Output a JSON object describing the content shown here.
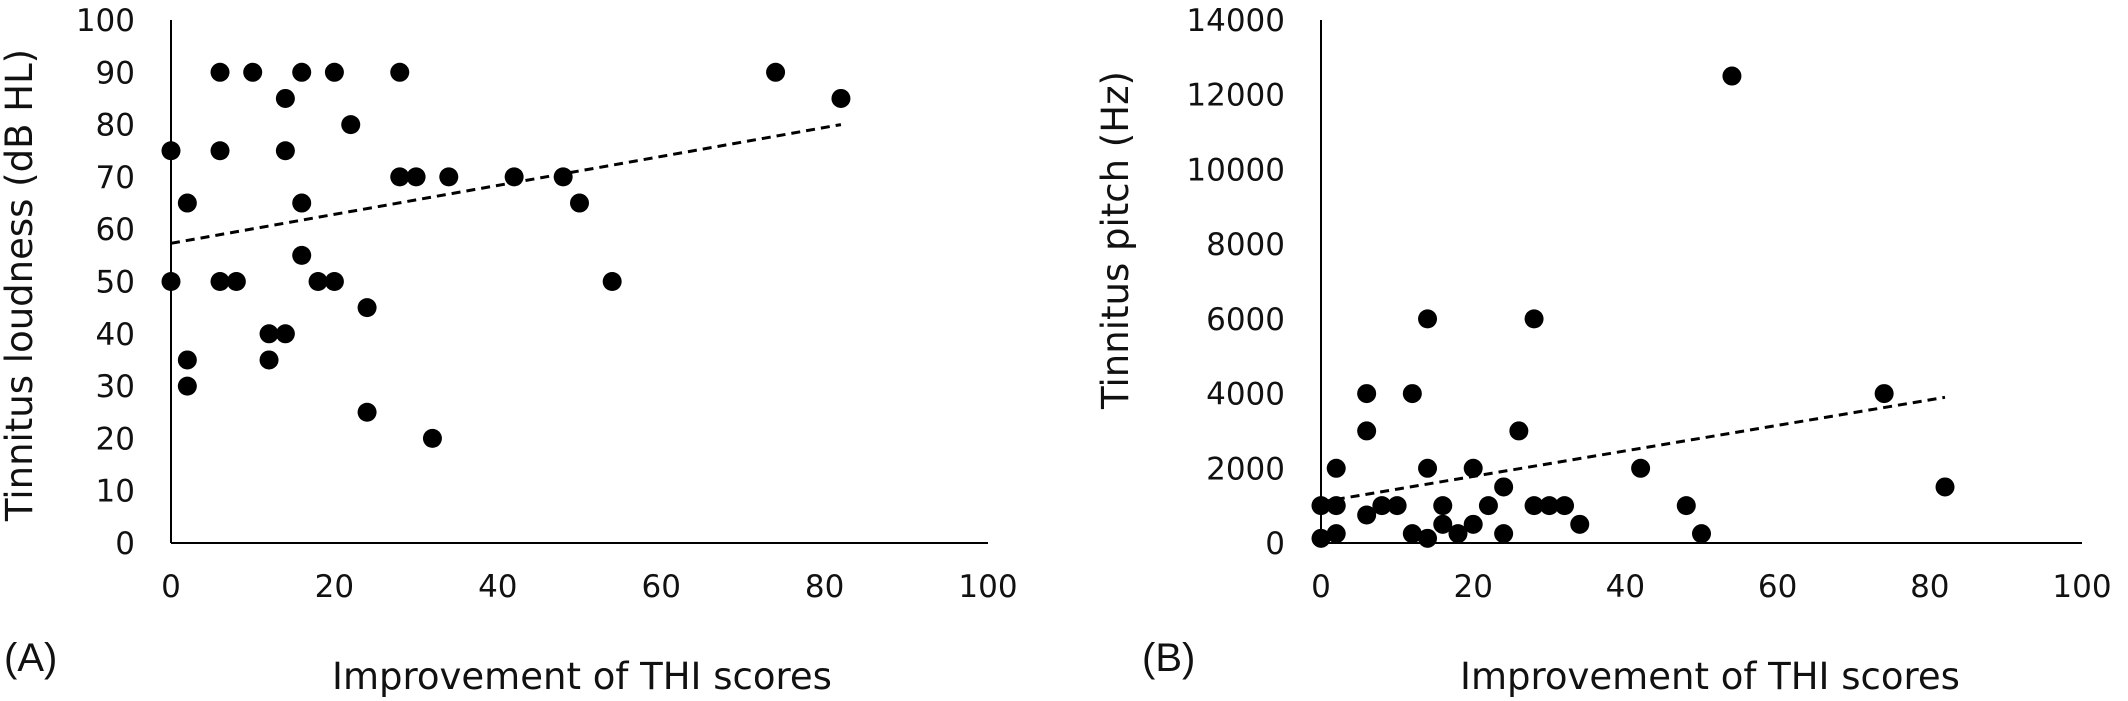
{
  "chart_data": [
    {
      "type": "scatter",
      "panel_label": "(A)",
      "xlabel": "Improvement of THI scores",
      "ylabel": "Tinnitus loudness (dB HL)",
      "xlim": [
        0,
        100
      ],
      "ylim": [
        0,
        100
      ],
      "xticks": [
        0,
        20,
        40,
        60,
        80,
        100
      ],
      "yticks": [
        0,
        10,
        20,
        30,
        40,
        50,
        60,
        70,
        80,
        90,
        100
      ],
      "grid": false,
      "marker_color": "#000000",
      "points": [
        [
          0,
          75
        ],
        [
          0,
          50
        ],
        [
          2,
          65
        ],
        [
          2,
          35
        ],
        [
          2,
          30
        ],
        [
          6,
          90
        ],
        [
          6,
          75
        ],
        [
          6,
          50
        ],
        [
          8,
          50
        ],
        [
          10,
          90
        ],
        [
          12,
          40
        ],
        [
          12,
          35
        ],
        [
          14,
          85
        ],
        [
          14,
          75
        ],
        [
          14,
          40
        ],
        [
          16,
          90
        ],
        [
          16,
          65
        ],
        [
          16,
          55
        ],
        [
          18,
          50
        ],
        [
          20,
          90
        ],
        [
          20,
          50
        ],
        [
          22,
          80
        ],
        [
          24,
          45
        ],
        [
          24,
          25
        ],
        [
          28,
          90
        ],
        [
          28,
          70
        ],
        [
          30,
          70
        ],
        [
          32,
          20
        ],
        [
          34,
          70
        ],
        [
          42,
          70
        ],
        [
          48,
          70
        ],
        [
          50,
          65
        ],
        [
          54,
          50
        ],
        [
          74,
          90
        ],
        [
          82,
          85
        ]
      ],
      "trendline": {
        "style": "dashed",
        "x": [
          0,
          82
        ],
        "y": [
          57.3,
          80
        ]
      }
    },
    {
      "type": "scatter",
      "panel_label": "(B)",
      "xlabel": "Improvement of THI scores",
      "ylabel": "Tinnitus pitch (Hz)",
      "xlim": [
        0,
        100
      ],
      "ylim": [
        0,
        14000
      ],
      "xticks": [
        0,
        20,
        40,
        60,
        80,
        100
      ],
      "yticks": [
        0,
        2000,
        4000,
        6000,
        8000,
        10000,
        12000,
        14000
      ],
      "grid": false,
      "marker_color": "#000000",
      "points": [
        [
          0,
          1000
        ],
        [
          0,
          125
        ],
        [
          2,
          2000
        ],
        [
          2,
          1000
        ],
        [
          2,
          250
        ],
        [
          6,
          4000
        ],
        [
          6,
          3000
        ],
        [
          6,
          750
        ],
        [
          8,
          1000
        ],
        [
          10,
          1000
        ],
        [
          12,
          4000
        ],
        [
          12,
          250
        ],
        [
          14,
          6000
        ],
        [
          14,
          2000
        ],
        [
          14,
          125
        ],
        [
          16,
          1000
        ],
        [
          16,
          500
        ],
        [
          18,
          250
        ],
        [
          20,
          2000
        ],
        [
          20,
          500
        ],
        [
          22,
          1000
        ],
        [
          24,
          1500
        ],
        [
          24,
          250
        ],
        [
          26,
          3000
        ],
        [
          28,
          6000
        ],
        [
          28,
          1000
        ],
        [
          30,
          1000
        ],
        [
          32,
          1000
        ],
        [
          34,
          500
        ],
        [
          42,
          2000
        ],
        [
          48,
          1000
        ],
        [
          50,
          250
        ],
        [
          54,
          12500
        ],
        [
          74,
          4000
        ],
        [
          82,
          1500
        ]
      ],
      "trendline": {
        "style": "dashed",
        "x": [
          0,
          82
        ],
        "y": [
          1100,
          3900
        ]
      }
    }
  ]
}
